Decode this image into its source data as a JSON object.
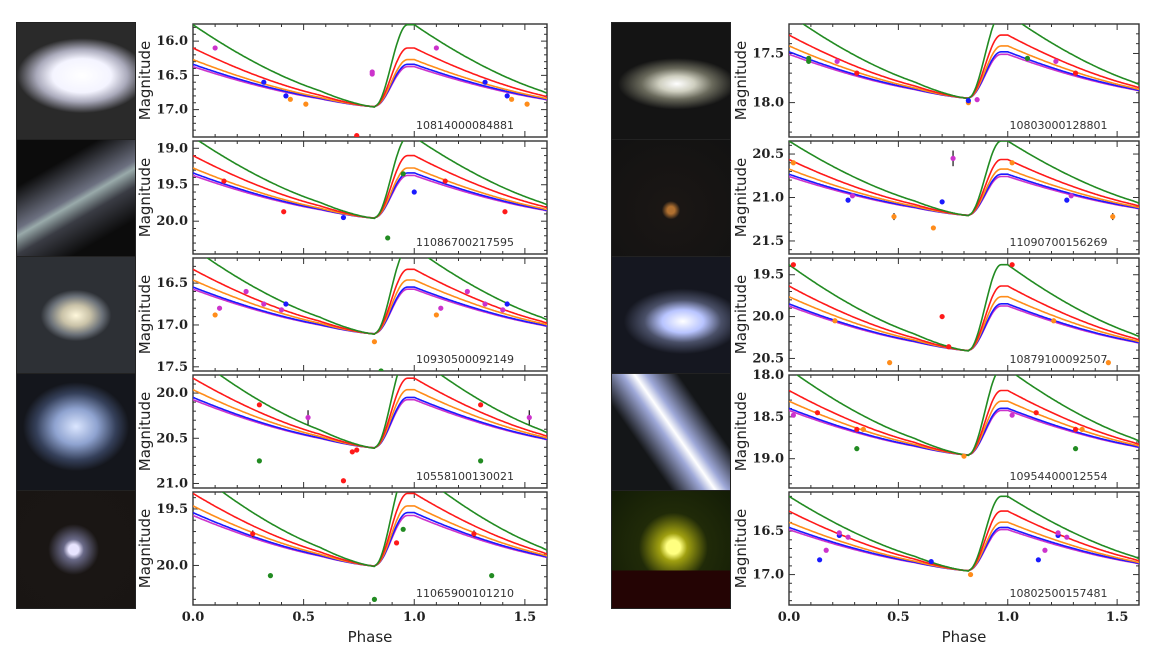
{
  "figure": {
    "x_axis_label": "Phase",
    "y_axis_label": "Magnitude",
    "x_ticks": [
      "0.0",
      "0.5",
      "1.0",
      "1.5"
    ],
    "band_colors": {
      "g": "#228B22",
      "r": "#ff1a1a",
      "i": "#ff8c1a",
      "z": "#1a1aff",
      "y": "#cc33cc"
    }
  },
  "chart_data": [
    {
      "type": "line",
      "column": "left",
      "row": 0,
      "id": "10814000084881",
      "galaxy": "elliptical-bright",
      "ylim": [
        17.4,
        15.75
      ],
      "yticks": [
        "16.0",
        "16.5",
        "17.0"
      ],
      "xlim": [
        0,
        1.6
      ],
      "amp": {
        "g": 1.4,
        "r": 1.0,
        "i": 0.8,
        "z": 0.72,
        "y": 0.68
      },
      "base": 16.95,
      "points": [
        {
          "x": 0.1,
          "y": 16.1,
          "band": "y"
        },
        {
          "x": 0.32,
          "y": 16.6,
          "band": "z"
        },
        {
          "x": 0.42,
          "y": 16.8,
          "band": "z"
        },
        {
          "x": 0.44,
          "y": 16.85,
          "band": "i"
        },
        {
          "x": 0.51,
          "y": 16.92,
          "band": "i"
        },
        {
          "x": 0.74,
          "y": 17.38,
          "band": "r"
        },
        {
          "x": 0.81,
          "y": 16.45,
          "band": "y"
        },
        {
          "x": 0.81,
          "y": 16.48,
          "band": "y"
        },
        {
          "x": 1.1,
          "y": 16.1,
          "band": "y"
        },
        {
          "x": 1.32,
          "y": 16.6,
          "band": "z"
        },
        {
          "x": 1.42,
          "y": 16.8,
          "band": "z"
        },
        {
          "x": 1.44,
          "y": 16.85,
          "band": "i"
        },
        {
          "x": 1.51,
          "y": 16.92,
          "band": "i"
        }
      ]
    },
    {
      "type": "line",
      "column": "left",
      "row": 1,
      "id": "11086700217595",
      "galaxy": "edge-on-spiral",
      "ylim": [
        20.45,
        18.9
      ],
      "yticks": [
        "19.0",
        "19.5",
        "20.0"
      ],
      "xlim": [
        0,
        1.6
      ],
      "amp": {
        "g": 1.3,
        "r": 1.0,
        "i": 0.8,
        "z": 0.72,
        "y": 0.68
      },
      "base": 19.95,
      "points": [
        {
          "x": 0.14,
          "y": 19.45,
          "band": "r"
        },
        {
          "x": 0.41,
          "y": 19.87,
          "band": "r"
        },
        {
          "x": 0.68,
          "y": 19.95,
          "band": "z"
        },
        {
          "x": 0.88,
          "y": 20.23,
          "band": "g"
        },
        {
          "x": 0.95,
          "y": 19.35,
          "band": "g"
        },
        {
          "x": 1.0,
          "y": 19.6,
          "band": "z"
        },
        {
          "x": 1.14,
          "y": 19.45,
          "band": "r"
        },
        {
          "x": 1.41,
          "y": 19.87,
          "band": "r"
        }
      ]
    },
    {
      "type": "line",
      "column": "left",
      "row": 2,
      "id": "10930500092149",
      "galaxy": "barred-spiral",
      "ylim": [
        17.55,
        16.2
      ],
      "yticks": [
        "16.5",
        "17.0",
        "17.5"
      ],
      "xlim": [
        0,
        1.6
      ],
      "amp": {
        "g": 1.2,
        "r": 0.9,
        "i": 0.75,
        "z": 0.65,
        "y": 0.62
      },
      "base": 17.1,
      "points": [
        {
          "x": 0.1,
          "y": 16.88,
          "band": "i"
        },
        {
          "x": 0.12,
          "y": 16.8,
          "band": "y"
        },
        {
          "x": 0.24,
          "y": 16.6,
          "band": "y"
        },
        {
          "x": 0.32,
          "y": 16.75,
          "band": "y"
        },
        {
          "x": 0.4,
          "y": 16.82,
          "band": "y"
        },
        {
          "x": 0.42,
          "y": 16.75,
          "band": "z"
        },
        {
          "x": 0.82,
          "y": 17.2,
          "band": "i"
        },
        {
          "x": 0.85,
          "y": 17.55,
          "band": "g"
        },
        {
          "x": 1.1,
          "y": 16.88,
          "band": "i"
        },
        {
          "x": 1.12,
          "y": 16.8,
          "band": "y"
        },
        {
          "x": 1.24,
          "y": 16.6,
          "band": "y"
        },
        {
          "x": 1.32,
          "y": 16.75,
          "band": "y"
        },
        {
          "x": 1.4,
          "y": 16.82,
          "band": "y"
        },
        {
          "x": 1.42,
          "y": 16.75,
          "band": "z"
        }
      ]
    },
    {
      "type": "line",
      "column": "left",
      "row": 3,
      "id": "10558100130021",
      "galaxy": "diffuse-spiral",
      "ylim": [
        21.05,
        19.8
      ],
      "yticks": [
        "20.0",
        "20.5",
        "21.0"
      ],
      "xlim": [
        0,
        1.6
      ],
      "amp": {
        "g": 1.2,
        "r": 0.9,
        "i": 0.75,
        "z": 0.65,
        "y": 0.62
      },
      "base": 20.6,
      "points": [
        {
          "x": 0.3,
          "y": 20.13,
          "band": "r"
        },
        {
          "x": 0.3,
          "y": 20.75,
          "band": "g"
        },
        {
          "x": 0.52,
          "y": 20.27,
          "band": "y",
          "err": 0.08
        },
        {
          "x": 0.68,
          "y": 20.97,
          "band": "r"
        },
        {
          "x": 0.72,
          "y": 20.65,
          "band": "r"
        },
        {
          "x": 0.74,
          "y": 20.63,
          "band": "r"
        },
        {
          "x": 1.3,
          "y": 20.13,
          "band": "r"
        },
        {
          "x": 1.3,
          "y": 20.75,
          "band": "g"
        },
        {
          "x": 1.52,
          "y": 20.27,
          "band": "y",
          "err": 0.08
        }
      ]
    },
    {
      "type": "line",
      "column": "left",
      "row": 4,
      "id": "11065900101210",
      "galaxy": "compact-pair",
      "ylim": [
        20.35,
        19.35
      ],
      "yticks": [
        "19.5",
        "20.0"
      ],
      "xlim": [
        0,
        1.6
      ],
      "amp": {
        "g": 1.0,
        "r": 0.75,
        "i": 0.62,
        "z": 0.55,
        "y": 0.52
      },
      "base": 20.0,
      "points": [
        {
          "x": 0.27,
          "y": 19.72,
          "band": "r",
          "err": 0.03
        },
        {
          "x": 0.35,
          "y": 20.09,
          "band": "g"
        },
        {
          "x": 0.82,
          "y": 20.3,
          "band": "g"
        },
        {
          "x": 0.92,
          "y": 19.8,
          "band": "r"
        },
        {
          "x": 0.95,
          "y": 19.68,
          "band": "g"
        },
        {
          "x": 1.27,
          "y": 19.72,
          "band": "r",
          "err": 0.03
        },
        {
          "x": 1.35,
          "y": 20.09,
          "band": "g"
        }
      ]
    },
    {
      "type": "line",
      "column": "right",
      "row": 0,
      "id": "10803000128801",
      "galaxy": "inclined-lenticular",
      "ylim": [
        18.35,
        17.2
      ],
      "yticks": [
        "17.5",
        "18.0"
      ],
      "xlim": [
        0,
        1.6
      ],
      "amp": {
        "g": 1.0,
        "r": 0.75,
        "i": 0.62,
        "z": 0.55,
        "y": 0.52
      },
      "base": 17.95,
      "points": [
        {
          "x": 0.09,
          "y": 17.55,
          "band": "g"
        },
        {
          "x": 0.09,
          "y": 17.58,
          "band": "g"
        },
        {
          "x": 0.22,
          "y": 17.58,
          "band": "y"
        },
        {
          "x": 0.31,
          "y": 17.7,
          "band": "r"
        },
        {
          "x": 0.82,
          "y": 18.0,
          "band": "i"
        },
        {
          "x": 0.82,
          "y": 17.98,
          "band": "z"
        },
        {
          "x": 0.86,
          "y": 17.97,
          "band": "y"
        },
        {
          "x": 1.09,
          "y": 17.55,
          "band": "g"
        },
        {
          "x": 1.22,
          "y": 17.58,
          "band": "y"
        },
        {
          "x": 1.31,
          "y": 17.7,
          "band": "r"
        }
      ]
    },
    {
      "type": "line",
      "column": "right",
      "row": 1,
      "id": "11090700156269",
      "galaxy": "faint-field",
      "ylim": [
        21.65,
        20.35
      ],
      "yticks": [
        "20.5",
        "21.0",
        "21.5"
      ],
      "xlim": [
        0,
        1.6
      ],
      "amp": {
        "g": 1.0,
        "r": 0.75,
        "i": 0.62,
        "z": 0.55,
        "y": 0.52
      },
      "base": 21.2,
      "points": [
        {
          "x": 0.02,
          "y": 20.6,
          "band": "i"
        },
        {
          "x": 0.27,
          "y": 21.03,
          "band": "z"
        },
        {
          "x": 0.29,
          "y": 20.98,
          "band": "y"
        },
        {
          "x": 0.48,
          "y": 21.22,
          "band": "i",
          "err": 0.04
        },
        {
          "x": 0.66,
          "y": 21.35,
          "band": "i"
        },
        {
          "x": 0.7,
          "y": 21.05,
          "band": "z"
        },
        {
          "x": 0.75,
          "y": 20.55,
          "band": "y",
          "err": 0.09
        },
        {
          "x": 1.02,
          "y": 20.6,
          "band": "i"
        },
        {
          "x": 1.27,
          "y": 21.03,
          "band": "z"
        },
        {
          "x": 1.29,
          "y": 20.98,
          "band": "y"
        },
        {
          "x": 1.48,
          "y": 21.22,
          "band": "i",
          "err": 0.04
        }
      ]
    },
    {
      "type": "line",
      "column": "right",
      "row": 2,
      "id": "10879100092507",
      "galaxy": "bright-spiral",
      "ylim": [
        20.65,
        19.3
      ],
      "yticks": [
        "19.5",
        "20.0",
        "20.5"
      ],
      "xlim": [
        0,
        1.6
      ],
      "amp": {
        "g": 1.2,
        "r": 0.9,
        "i": 0.75,
        "z": 0.65,
        "y": 0.62
      },
      "base": 20.4,
      "points": [
        {
          "x": 0.02,
          "y": 19.38,
          "band": "r"
        },
        {
          "x": 0.21,
          "y": 20.05,
          "band": "i"
        },
        {
          "x": 0.46,
          "y": 20.55,
          "band": "i"
        },
        {
          "x": 0.7,
          "y": 20.0,
          "band": "r"
        },
        {
          "x": 0.73,
          "y": 20.36,
          "band": "r"
        },
        {
          "x": 1.02,
          "y": 19.38,
          "band": "r"
        },
        {
          "x": 1.21,
          "y": 20.05,
          "band": "i"
        },
        {
          "x": 1.46,
          "y": 20.55,
          "band": "i"
        }
      ]
    },
    {
      "type": "line",
      "column": "right",
      "row": 3,
      "id": "10954400012554",
      "galaxy": "edge-on-bright",
      "ylim": [
        19.35,
        18.0
      ],
      "yticks": [
        "18.0",
        "18.5",
        "19.0"
      ],
      "xlim": [
        0,
        1.6
      ],
      "amp": {
        "g": 1.2,
        "r": 0.9,
        "i": 0.75,
        "z": 0.65,
        "y": 0.62
      },
      "base": 18.95,
      "points": [
        {
          "x": 0.02,
          "y": 18.48,
          "band": "y"
        },
        {
          "x": 0.13,
          "y": 18.45,
          "band": "r"
        },
        {
          "x": 0.31,
          "y": 18.65,
          "band": "r"
        },
        {
          "x": 0.34,
          "y": 18.65,
          "band": "i"
        },
        {
          "x": 0.31,
          "y": 18.88,
          "band": "g"
        },
        {
          "x": 0.8,
          "y": 18.97,
          "band": "i"
        },
        {
          "x": 1.02,
          "y": 18.48,
          "band": "y"
        },
        {
          "x": 1.13,
          "y": 18.45,
          "band": "r"
        },
        {
          "x": 1.31,
          "y": 18.65,
          "band": "r"
        },
        {
          "x": 1.34,
          "y": 18.65,
          "band": "i"
        },
        {
          "x": 1.31,
          "y": 18.88,
          "band": "g"
        }
      ]
    },
    {
      "type": "line",
      "column": "right",
      "row": 4,
      "id": "10802500157481",
      "galaxy": "yellow-point-source",
      "ylim": [
        17.35,
        16.05
      ],
      "yticks": [
        "16.5",
        "17.0"
      ],
      "xlim": [
        0,
        1.6
      ],
      "amp": {
        "g": 1.0,
        "r": 0.8,
        "i": 0.65,
        "z": 0.58,
        "y": 0.55
      },
      "base": 16.95,
      "points": [
        {
          "x": 0.14,
          "y": 16.83,
          "band": "z"
        },
        {
          "x": 0.17,
          "y": 16.72,
          "band": "y"
        },
        {
          "x": 0.23,
          "y": 16.55,
          "band": "z"
        },
        {
          "x": 0.23,
          "y": 16.52,
          "band": "y"
        },
        {
          "x": 0.27,
          "y": 16.57,
          "band": "y"
        },
        {
          "x": 0.65,
          "y": 16.85,
          "band": "z"
        },
        {
          "x": 0.83,
          "y": 17.0,
          "band": "i"
        },
        {
          "x": 1.14,
          "y": 16.83,
          "band": "z"
        },
        {
          "x": 1.17,
          "y": 16.72,
          "band": "y"
        },
        {
          "x": 1.23,
          "y": 16.55,
          "band": "z"
        },
        {
          "x": 1.23,
          "y": 16.52,
          "band": "y"
        },
        {
          "x": 1.27,
          "y": 16.57,
          "band": "y"
        }
      ]
    }
  ]
}
